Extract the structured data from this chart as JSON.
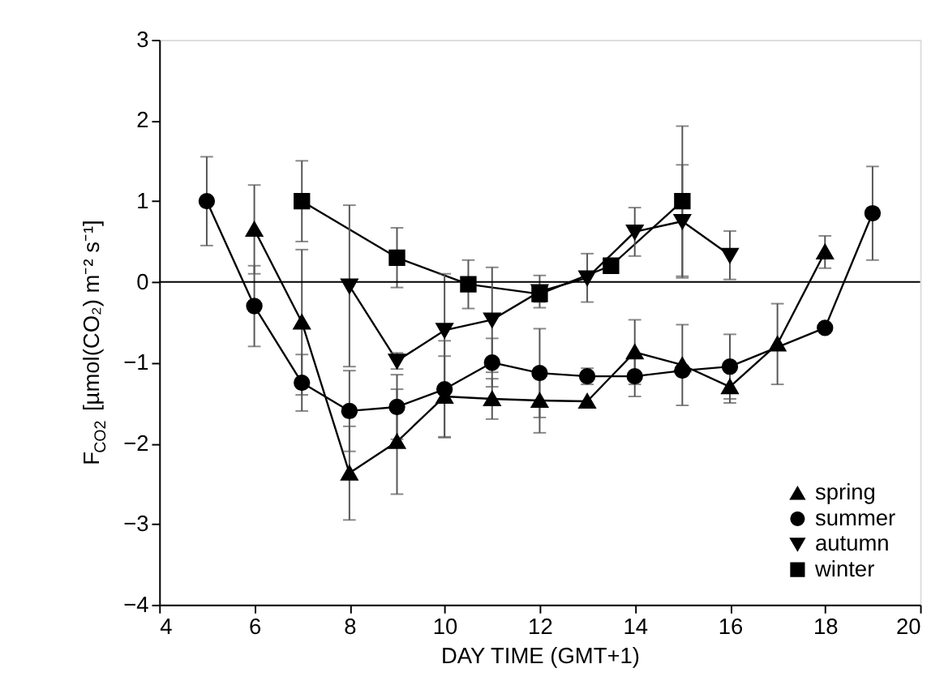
{
  "chart_data": {
    "type": "line",
    "xlabel": "DAY TIME (GMT+1)",
    "ylabel": "F$_{CO2}$ [µmol(CO₂) m⁻² s⁻¹]",
    "xlim": [
      4,
      20
    ],
    "xticks": [
      4,
      6,
      8,
      10,
      12,
      14,
      16,
      18,
      20
    ],
    "ylim": [
      -4,
      3
    ],
    "yticks": [
      -4,
      -3,
      -2,
      -1,
      0,
      1,
      2,
      3
    ],
    "grid": false,
    "legend": "bottom right",
    "line_style": "solid",
    "ref_lines": [
      {
        "axis": "y",
        "value": 0,
        "color": "#000000"
      }
    ],
    "series": [
      {
        "name": "spring",
        "color": "#000000",
        "marker": "triangle",
        "x": [
          6,
          7,
          8,
          9,
          10,
          11,
          12,
          13,
          14,
          15,
          16,
          17,
          18
        ],
        "values": [
          0.65,
          -0.5,
          -2.37,
          -1.98,
          -1.42,
          -1.45,
          -1.47,
          -1.48,
          -0.87,
          -1.03,
          -1.3,
          -0.77,
          0.37
        ],
        "errors": [
          0.55,
          0.9,
          0.58,
          0.65,
          0.5,
          0.25,
          0.4,
          null,
          0.4,
          0.5,
          0.2,
          0.5,
          0.2
        ]
      },
      {
        "name": "summer",
        "color": "#000000",
        "marker": "circle",
        "x": [
          5,
          6,
          7,
          8,
          9,
          10,
          11,
          12,
          13,
          14,
          15,
          16,
          18,
          19
        ],
        "values": [
          1.0,
          -0.3,
          -1.25,
          -1.6,
          -1.55,
          -1.33,
          -1.0,
          -1.13,
          -1.17,
          -1.17,
          -1.1,
          -1.05,
          -0.57,
          0.85
        ],
        "errors": [
          0.55,
          0.5,
          0.35,
          0.5,
          0.4,
          0.6,
          0.3,
          0.55,
          0.1,
          0.25,
          null,
          0.4,
          null,
          0.58
        ]
      },
      {
        "name": "autumn",
        "color": "#000000",
        "marker": "triangle-down",
        "x": [
          8,
          9,
          10,
          11,
          12,
          13,
          14,
          15,
          16
        ],
        "values": [
          -0.05,
          -0.98,
          -0.6,
          -0.47,
          -0.12,
          0.05,
          0.62,
          0.75,
          0.33
        ],
        "errors": [
          1.0,
          0.1,
          0.7,
          0.65,
          0.2,
          0.3,
          0.3,
          0.7,
          0.3
        ]
      },
      {
        "name": "winter",
        "color": "#000000",
        "marker": "square",
        "x": [
          7,
          9,
          10.5,
          12,
          13.5,
          15
        ],
        "values": [
          1.0,
          0.3,
          -0.03,
          -0.15,
          0.2,
          1.0
        ],
        "errors": [
          0.5,
          0.37,
          0.3,
          0.1,
          null,
          0.93
        ]
      }
    ]
  }
}
